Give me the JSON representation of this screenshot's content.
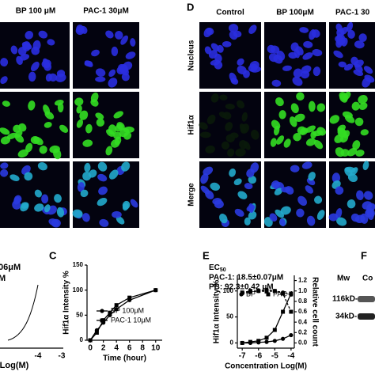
{
  "figure": {
    "panels": {
      "d": "D",
      "c": "C",
      "e": "E",
      "f": "F"
    },
    "left_columns": [
      "BP 100 μM",
      "PAC-1 30μM"
    ],
    "right_columns": [
      "Control",
      "BP 100μM",
      "PAC-1 30"
    ],
    "rows": [
      "Nucleus",
      "Hif1α",
      "Merge"
    ],
    "partial_chart": {
      "texts": [
        "06μM",
        "M"
      ],
      "xticks": [
        "-4",
        "-3"
      ],
      "xlabel": "Log(M)"
    },
    "blot": {
      "mw": "Mw",
      "column": "Co",
      "markers": [
        "116kD-",
        "34kD-"
      ]
    }
  },
  "chart_data": [
    {
      "type": "line",
      "ylabel": "Hif1α Intensity %",
      "xlabel": "Time (hour)",
      "x": [
        0,
        1,
        2,
        3,
        4,
        6,
        10
      ],
      "xlim": [
        -0.5,
        11
      ],
      "xticks": [
        0,
        2,
        4,
        6,
        8,
        10
      ],
      "ylim": [
        0,
        150
      ],
      "yticks": [
        0,
        50,
        100,
        150
      ],
      "series": [
        {
          "name": "BP 100μM",
          "marker": "circle",
          "color": "#000000",
          "values": [
            0,
            20,
            35,
            50,
            62,
            80,
            100
          ]
        },
        {
          "name": "PAC-1 10μM",
          "marker": "square",
          "color": "#000000",
          "values": [
            0,
            15,
            40,
            55,
            70,
            85,
            100
          ]
        }
      ]
    },
    {
      "type": "line",
      "ylabel": "Hif1α Intensity %",
      "y2label": "Relative cell count",
      "xlabel": "Concentration Log(M)",
      "annotation": {
        "label": "EC",
        "subscript": "50",
        "lines": [
          "PAC-1: 18.5±0.07μM",
          "PB: 92.3±0.42 μM"
        ]
      },
      "x": [
        -7,
        -6.5,
        -6,
        -5.5,
        -5,
        -4.5,
        -4
      ],
      "xlim": [
        -7.3,
        -3.8
      ],
      "xticks": [
        -7,
        -6,
        -5,
        -4
      ],
      "ylim": [
        -10,
        130
      ],
      "yticks": [
        0,
        50,
        100
      ],
      "y2lim": [
        -0.1,
        1.3
      ],
      "y2ticks": [
        {
          "value": 0,
          "label": "0.0"
        },
        {
          "value": 0.2,
          "label": "0.2"
        },
        {
          "value": 0.4,
          "label": "0.4"
        },
        {
          "value": 0.6,
          "label": "0.6"
        },
        {
          "value": 0.8,
          "label": "0.8"
        },
        {
          "value": 1,
          "label": "1.0"
        },
        {
          "value": 1.2,
          "label": "1.2"
        }
      ],
      "series": [
        {
          "name": "BP",
          "marker": "circle",
          "color": "#000000",
          "values": [
            0,
            0,
            1,
            2,
            4,
            8,
            15
          ]
        },
        {
          "name": "PAC-1",
          "marker": "square",
          "color": "#000000",
          "values": [
            0,
            2,
            4,
            10,
            25,
            60,
            95
          ]
        },
        {
          "name": null,
          "marker": "circle",
          "axis": "y2",
          "dashed": true,
          "color": "#000000",
          "values": [
            0.95,
            0.98,
            1.0,
            1.02,
            1.0,
            0.97,
            0.93
          ]
        },
        {
          "name": null,
          "marker": "square",
          "axis": "y2",
          "dashed": true,
          "color": "#000000",
          "values": [
            0.97,
            1.0,
            1.0,
            0.99,
            1.0,
            0.95,
            0.6
          ]
        }
      ]
    }
  ]
}
